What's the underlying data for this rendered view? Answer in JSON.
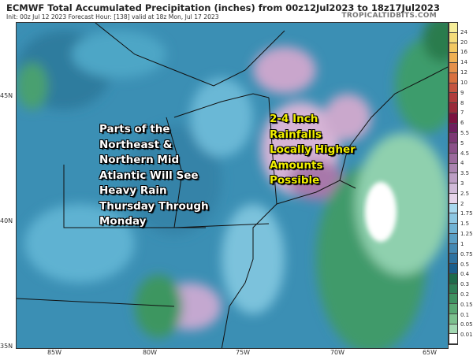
{
  "header": {
    "title": "ECMWF Total Accumulated Precipitation (inches) from 00z12Jul2023 to 18z17Jul2023",
    "subtitle": "Init: 00z Jul 12 2023   Forecast Hour: [138]   valid at 18z Mon, Jul 17 2023",
    "brand": "TROPICALTIDBITS.COM"
  },
  "axes": {
    "latitudes": [
      "45N",
      "40N",
      "35N"
    ],
    "longitudes": [
      "85W",
      "80W",
      "75W",
      "70W",
      "65W"
    ]
  },
  "colorbar": {
    "labels": [
      "24",
      "20",
      "16",
      "14",
      "12",
      "10",
      "9",
      "8",
      "7",
      "6",
      "5.5",
      "5",
      "4.5",
      "4",
      "3.5",
      "3",
      "2.5",
      "2",
      "1.75",
      "1.5",
      "1.25",
      "1",
      "0.75",
      "0.5",
      "0.4",
      "0.3",
      "0.2",
      "0.15",
      "0.1",
      "0.05",
      "0.01"
    ],
    "colors": [
      "#f6ee9a",
      "#f4dc7a",
      "#f2c862",
      "#eeb054",
      "#e4904a",
      "#d8703e",
      "#c45440",
      "#b03c3c",
      "#9a2a3a",
      "#7c1240",
      "#6e1e5e",
      "#7c3874",
      "#8a5088",
      "#9a6a9c",
      "#aa84b0",
      "#bc9ec4",
      "#d0bad8",
      "#e6d4ea",
      "#a8d8ee",
      "#8cc6e2",
      "#70b2d4",
      "#5a9ec4",
      "#4488b2",
      "#2e72a0",
      "#1a5e8c",
      "#1e6a4a",
      "#2e7e56",
      "#409262",
      "#5aa874",
      "#7cc08e",
      "#a2d8b2",
      "#ffffff"
    ]
  },
  "annotations": {
    "left": [
      "Parts of the",
      "Northeast &",
      "Northern Mid",
      "Atlantic Will See",
      "Heavy Rain",
      "Thursday Through",
      "Monday"
    ],
    "right": [
      "2-4 Inch",
      "Rainfalls",
      "Locally Higher",
      "Amounts",
      "Possible"
    ]
  },
  "colors": {
    "left_text": "#ffffff",
    "right_text": "#f2f000"
  }
}
